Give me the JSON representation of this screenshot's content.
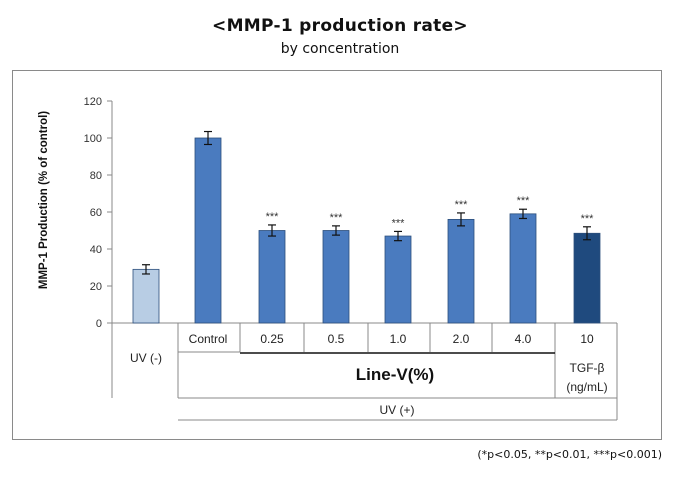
{
  "title": "<MMP-1 production rate>",
  "subtitle": "by concentration",
  "footnote": "(*p<0.05, **p<0.01, ***p<0.001)",
  "chart_data": {
    "type": "bar",
    "ylabel": "MMP-1 Production (% of control)",
    "ylim": [
      0,
      120
    ],
    "yticks": [
      0,
      20,
      40,
      60,
      80,
      100,
      120
    ],
    "categories": [
      "UV (-)",
      "Control",
      "0.25",
      "0.5",
      "1.0",
      "2.0",
      "4.0",
      "10"
    ],
    "values": [
      29,
      100,
      50,
      50,
      47,
      56,
      59,
      48.5
    ],
    "errors": [
      2.5,
      3.5,
      3,
      2.5,
      2.5,
      3.5,
      2.5,
      3.5
    ],
    "significance": [
      "",
      "",
      "***",
      "***",
      "***",
      "***",
      "***",
      "***"
    ],
    "colors": [
      "#b8cde4",
      "#4a7bbf",
      "#4a7bbf",
      "#4a7bbf",
      "#4a7bbf",
      "#4a7bbf",
      "#4a7bbf",
      "#1f4a7e"
    ],
    "group_labels": {
      "uv_minus": "UV (-)",
      "line_v": "Line-V(%)",
      "tgf_line1": "TGF-β",
      "tgf_line2": "(ng/mL)",
      "uv_plus": "UV (+)"
    },
    "grid": false,
    "legend": "none"
  }
}
